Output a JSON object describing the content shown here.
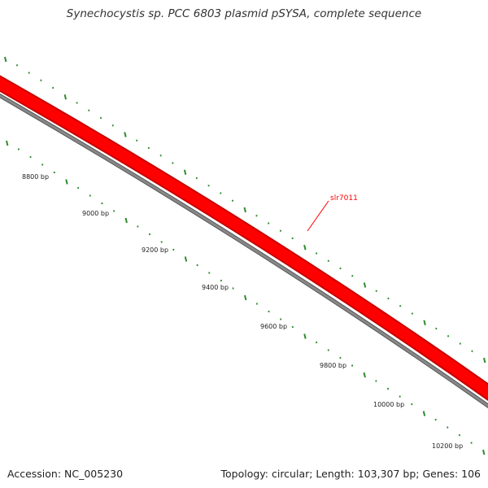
{
  "title": "Synechocystis sp. PCC 6803 plasmid pSYSA, complete sequence",
  "footer": {
    "accession": "Accession: NC_005230",
    "summary": "Topology: circular; Length: 103,307 bp; Genes: 106"
  },
  "scale_ticks": [
    {
      "label": "8800 bp"
    },
    {
      "label": "9000 bp"
    },
    {
      "label": "9200 bp"
    },
    {
      "label": "9400 bp"
    },
    {
      "label": "9600 bp"
    },
    {
      "label": "9800 bp"
    },
    {
      "label": "10000 bp"
    },
    {
      "label": "10200 bp"
    }
  ],
  "genes": [
    {
      "name": "slr7011",
      "color": "#ff0000"
    }
  ],
  "colors": {
    "gene_band": "#ff0000",
    "gene_band_edge": "#c80000",
    "backbone": "#888888",
    "backbone_edge": "#555555",
    "ticks": "#2e8b2e"
  }
}
